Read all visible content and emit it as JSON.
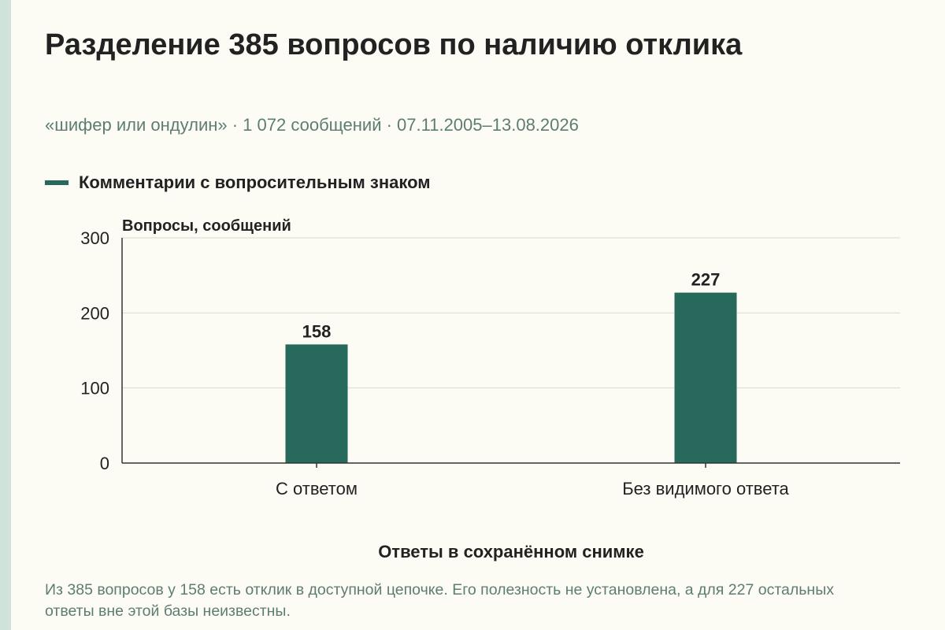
{
  "title": "Разделение 385 вопросов по наличию отклика",
  "subtitle": "«шифер или ондулин» · 1 072 сообщений · 07.11.2005–13.08.2026",
  "legend": {
    "label": "Комментарии с вопросительным знаком",
    "color": "#27695a"
  },
  "note": "Из 385 вопросов у 158 есть отклик в доступной цепочке. Его полезность не установлена, а для 227 остальных ответы вне этой базы неизвестны.",
  "chart_data": {
    "type": "bar",
    "categories": [
      "С ответом",
      "Без видимого ответа"
    ],
    "series": [
      {
        "name": "Комментарии с вопросительным знаком",
        "values": [
          158,
          227
        ]
      }
    ],
    "data_labels": [
      "158",
      "227"
    ],
    "ylabel": "Вопросы, сообщений",
    "xlabel": "Ответы в сохранённом снимке",
    "ylim": [
      0,
      300
    ],
    "yticks": [
      0,
      100,
      200,
      300
    ],
    "grid": true,
    "legend_position": "top-left",
    "bar_color": "#27695a"
  }
}
